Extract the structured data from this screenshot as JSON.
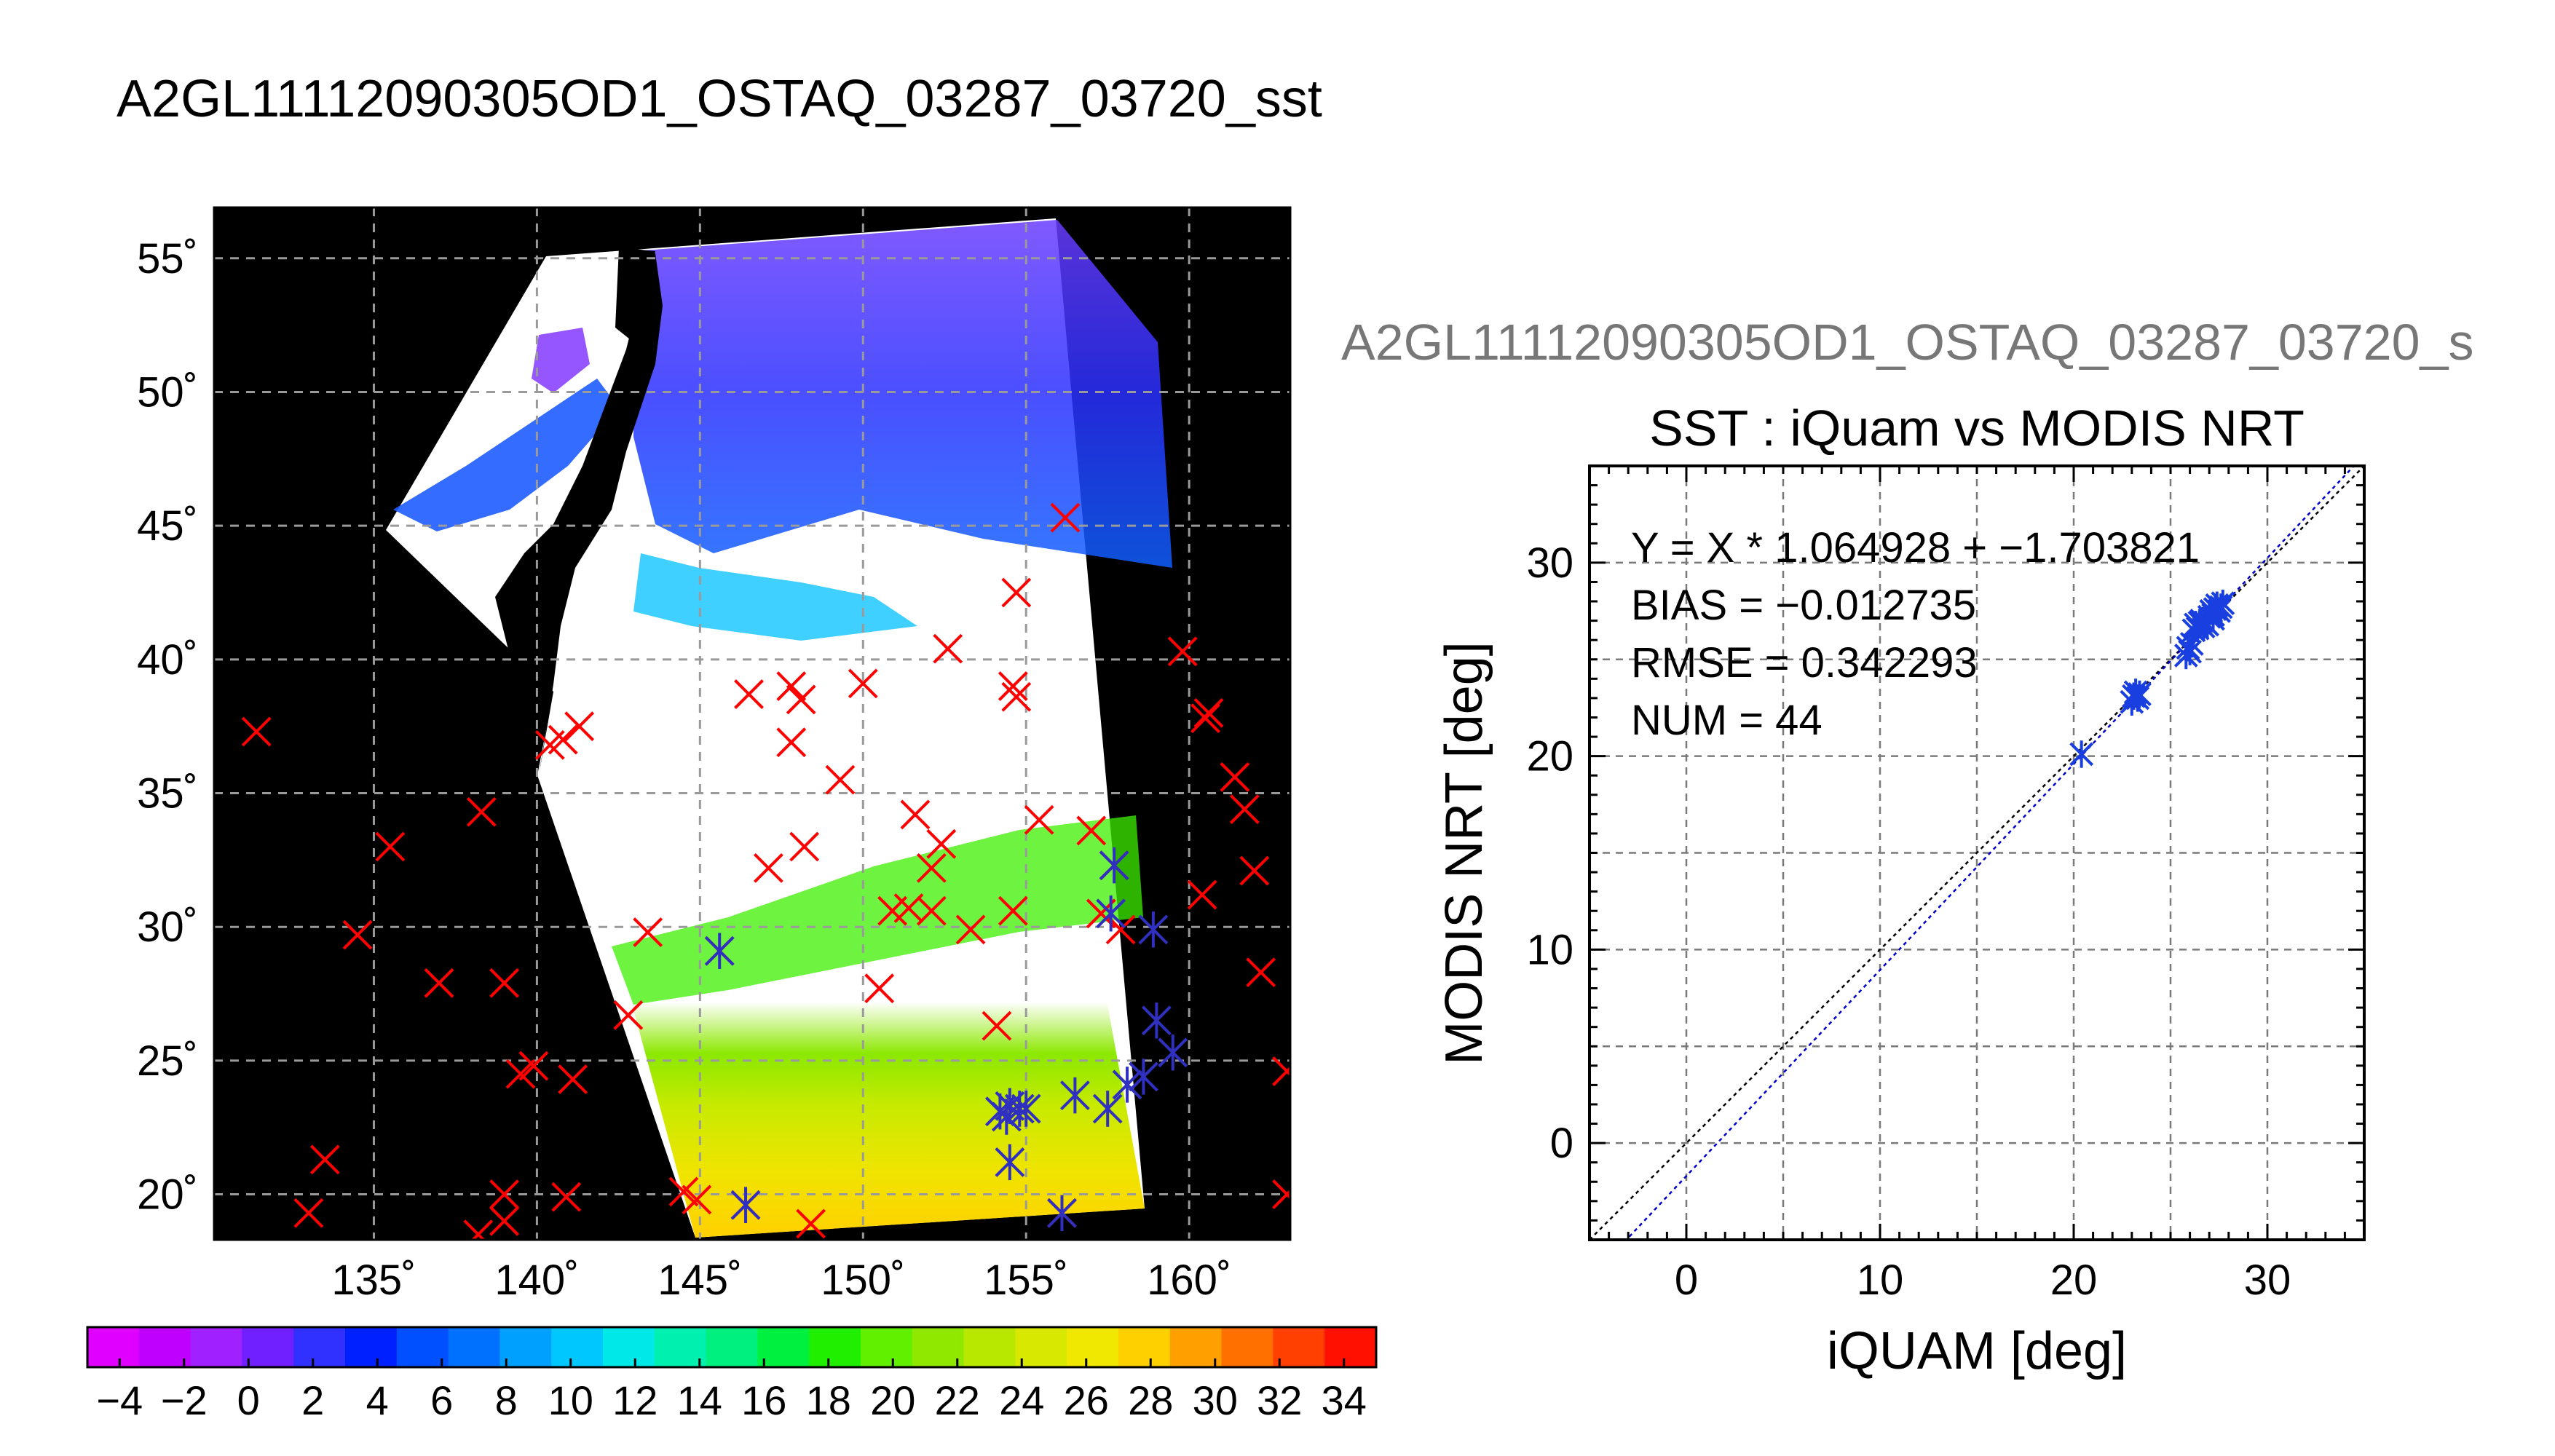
{
  "title": "A2GL11112090305OD1_OSTAQ_03287_03720_sst",
  "right_header": "A2GL11112090305OD1_OSTAQ_03287_03720_s",
  "chart_data": [
    {
      "type": "map",
      "lon_ticks": [
        "135˚",
        "140˚",
        "145˚",
        "150˚",
        "155˚",
        "160˚"
      ],
      "lat_ticks": [
        "20˚",
        "25˚",
        "30˚",
        "35˚",
        "40˚",
        "45˚",
        "50˚",
        "55˚"
      ],
      "lon_range": [
        130.1,
        163.1
      ],
      "lat_range": [
        18.3,
        56.9
      ],
      "grid": true,
      "colorbar": {
        "tick_labels": [
          "−4",
          "−2",
          "0",
          "2",
          "4",
          "6",
          "8",
          "10",
          "12",
          "14",
          "16",
          "18",
          "20",
          "22",
          "24",
          "26",
          "28",
          "30",
          "32",
          "34"
        ],
        "range": [
          -5,
          35
        ],
        "colors": [
          "#e000ff",
          "#c000ff",
          "#a020ff",
          "#7020ff",
          "#3030ff",
          "#0020ff",
          "#0050ff",
          "#0070ff",
          "#00a0ff",
          "#00c8ff",
          "#00e8e8",
          "#00f0b0",
          "#00f080",
          "#00f040",
          "#20f000",
          "#60f000",
          "#90e800",
          "#b8e800",
          "#d8e800",
          "#f0e800",
          "#ffd000",
          "#ffa000",
          "#ff7000",
          "#ff4000",
          "#ff1000"
        ]
      },
      "series": [
        {
          "marker": "x",
          "color": "#ff0000",
          "points": [
            [
              131.4,
              37.3
            ],
            [
              133.0,
              19.3
            ],
            [
              133.5,
              21.3
            ],
            [
              134.5,
              29.7
            ],
            [
              135.5,
              33.0
            ],
            [
              137.0,
              27.9
            ],
            [
              138.2,
              18.5
            ],
            [
              138.3,
              34.3
            ],
            [
              139.0,
              20.0
            ],
            [
              139.0,
              19.0
            ],
            [
              139.0,
              27.9
            ],
            [
              139.5,
              24.5
            ],
            [
              139.9,
              24.8
            ],
            [
              140.4,
              36.8
            ],
            [
              140.8,
              37.0
            ],
            [
              140.9,
              19.9
            ],
            [
              141.1,
              24.3
            ],
            [
              141.3,
              37.5
            ],
            [
              142.8,
              26.7
            ],
            [
              143.4,
              29.8
            ],
            [
              144.5,
              20.1
            ],
            [
              144.9,
              19.8
            ],
            [
              145.6,
              29.1
            ],
            [
              146.4,
              19.6
            ],
            [
              146.5,
              38.7
            ],
            [
              147.1,
              32.2
            ],
            [
              147.8,
              39.0
            ],
            [
              147.8,
              36.9
            ],
            [
              148.1,
              38.5
            ],
            [
              148.2,
              33.0
            ],
            [
              148.4,
              18.9
            ],
            [
              149.3,
              35.5
            ],
            [
              150.0,
              39.1
            ],
            [
              150.5,
              27.7
            ],
            [
              150.9,
              30.6
            ],
            [
              151.4,
              30.7
            ],
            [
              151.6,
              34.2
            ],
            [
              152.1,
              30.6
            ],
            [
              152.1,
              32.2
            ],
            [
              152.4,
              33.1
            ],
            [
              152.6,
              40.4
            ],
            [
              153.3,
              29.9
            ],
            [
              154.1,
              26.3
            ],
            [
              154.6,
              30.6
            ],
            [
              154.6,
              39.0
            ],
            [
              154.7,
              38.6
            ],
            [
              154.7,
              42.5
            ],
            [
              155.4,
              34.0
            ],
            [
              156.1,
              19.3
            ],
            [
              156.2,
              45.3
            ],
            [
              157.0,
              33.6
            ],
            [
              157.3,
              30.5
            ],
            [
              157.7,
              32.3
            ],
            [
              157.9,
              29.9
            ],
            [
              159.8,
              40.3
            ],
            [
              160.4,
              31.2
            ],
            [
              160.5,
              37.8
            ],
            [
              160.6,
              38.0
            ],
            [
              161.4,
              35.6
            ],
            [
              161.7,
              34.4
            ],
            [
              162.0,
              32.1
            ],
            [
              162.2,
              28.3
            ],
            [
              163.0,
              24.6
            ],
            [
              163.0,
              20.0
            ]
          ]
        },
        {
          "marker": "asterisk",
          "color": "#3030c0",
          "points": [
            [
              145.6,
              29.1
            ],
            [
              146.4,
              19.6
            ],
            [
              154.2,
              23.1
            ],
            [
              154.4,
              22.9
            ],
            [
              154.5,
              23.3
            ],
            [
              154.8,
              23.2
            ],
            [
              154.5,
              21.2
            ],
            [
              155.0,
              23.2
            ],
            [
              156.5,
              23.7
            ],
            [
              157.5,
              23.2
            ],
            [
              158.1,
              24.1
            ],
            [
              158.6,
              24.4
            ],
            [
              159.0,
              26.5
            ],
            [
              159.5,
              25.3
            ],
            [
              157.6,
              30.5
            ],
            [
              158.9,
              29.9
            ],
            [
              157.7,
              32.3
            ],
            [
              156.1,
              19.3
            ]
          ]
        }
      ]
    },
    {
      "type": "scatter",
      "title": "SST : iQuam vs MODIS NRT",
      "xlabel": "iQUAM [deg]",
      "ylabel": "MODIS NRT [deg]",
      "xlim": [
        -5,
        35
      ],
      "ylim": [
        -5,
        35
      ],
      "x_ticks": [
        "0",
        "10",
        "20",
        "30"
      ],
      "y_ticks": [
        "0",
        "10",
        "20",
        "30"
      ],
      "grid": true,
      "annotations": [
        "Y = X * 1.064928 + −1.703821",
        "BIAS = −0.012735",
        "RMSE = 0.342293",
        "NUM = 44"
      ],
      "fit": {
        "slope": 1.064928,
        "intercept": -1.703821,
        "color": "#0000cc"
      },
      "identity_line": {
        "color": "#000000"
      },
      "series": [
        {
          "marker": "asterisk",
          "color": "#1a3fe0",
          "x": [
            20.4,
            23.0,
            23.1,
            23.2,
            23.3,
            23.4,
            25.8,
            25.9,
            26.0,
            26.1,
            26.2,
            26.3,
            26.4,
            26.5,
            26.6,
            26.7,
            26.8,
            27.0,
            27.1,
            27.2,
            27.3,
            27.4,
            27.5,
            27.6,
            27.7,
            27.2,
            26.9
          ],
          "y": [
            20.1,
            22.8,
            23.1,
            23.3,
            23.0,
            23.2,
            25.2,
            25.6,
            25.4,
            25.8,
            26.5,
            26.8,
            26.6,
            26.9,
            27.0,
            26.7,
            26.9,
            27.2,
            27.5,
            27.3,
            27.6,
            27.8,
            27.5,
            27.7,
            27.9,
            27.1,
            26.8
          ]
        }
      ]
    }
  ]
}
